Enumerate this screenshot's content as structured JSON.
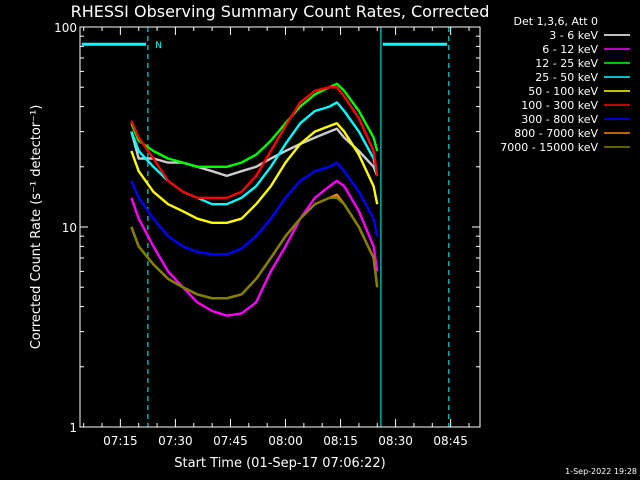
{
  "chart_data": {
    "type": "line",
    "title": "RHESSI Observing Summary Count Rates, Corrected",
    "xlabel": "Start Time (01-Sep-17 07:06:22)",
    "ylabel": "Corrected Count Rate (s⁻¹ detector⁻¹)",
    "yscale": "log",
    "ylim": [
      1,
      100
    ],
    "xlim_minutes": [
      64,
      173
    ],
    "x_tick_labels": [
      "07:15",
      "07:30",
      "07:45",
      "08:00",
      "08:15",
      "08:30",
      "08:45"
    ],
    "x_ticks_minutes": [
      75,
      90,
      105,
      120,
      135,
      150,
      165
    ],
    "y_tick_labels": [
      "1",
      "10",
      "100"
    ],
    "y_ticks": [
      1,
      10,
      100
    ],
    "legend_title": "Det 1,3,6, Att 0",
    "legend_position": "right",
    "grid": false,
    "x_minutes": [
      78,
      80,
      84,
      88,
      92,
      96,
      100,
      104,
      108,
      112,
      116,
      120,
      124,
      128,
      132,
      134,
      136,
      140,
      144,
      145
    ],
    "series": [
      {
        "name": "3 - 6 keV",
        "color": "#000000",
        "values": [
          30,
          22,
          22,
          21,
          21,
          20,
          19,
          18,
          19,
          20,
          22,
          24,
          26,
          28,
          30,
          31,
          28,
          24,
          20,
          18
        ]
      },
      {
        "name": "6 - 12 keV",
        "color": "#ff00ff",
        "values": [
          14,
          11,
          8,
          6,
          5,
          4.2,
          3.8,
          3.6,
          3.7,
          4.2,
          6,
          8,
          11,
          14,
          16,
          17,
          16,
          12,
          8,
          6
        ]
      },
      {
        "name": "12 - 25 keV",
        "color": "#00ff00",
        "values": [
          33,
          27,
          24,
          22,
          21,
          20,
          20,
          20,
          21,
          23,
          27,
          33,
          40,
          46,
          50,
          52,
          48,
          38,
          28,
          24
        ]
      },
      {
        "name": "25 - 50 keV",
        "color": "#00ffff",
        "values": [
          30,
          24,
          20,
          17,
          15,
          14,
          13,
          13,
          14,
          16,
          20,
          26,
          33,
          38,
          40,
          42,
          38,
          30,
          22,
          18
        ]
      },
      {
        "name": "50 - 100 keV",
        "color": "#ffff00",
        "values": [
          24,
          19,
          15,
          13,
          12,
          11,
          10.5,
          10.5,
          11,
          13,
          16,
          21,
          26,
          30,
          32,
          33,
          30,
          23,
          16,
          13
        ]
      },
      {
        "name": "100 - 300 keV",
        "color": "#ff0000",
        "values": [
          34,
          28,
          22,
          17,
          15,
          14,
          14,
          14,
          15,
          18,
          24,
          32,
          42,
          48,
          50,
          50,
          45,
          35,
          24,
          18
        ]
      },
      {
        "name": "300 - 800 keV",
        "color": "#0000ff",
        "values": [
          17,
          14,
          11,
          9,
          8,
          7.5,
          7.3,
          7.3,
          7.8,
          9,
          11,
          14,
          17,
          19,
          20,
          21,
          19,
          15,
          11,
          9
        ]
      },
      {
        "name": "800 - 7000 keV",
        "color": "#ff8000",
        "values": [
          10,
          8,
          6.5,
          5.5,
          5,
          4.6,
          4.4,
          4.4,
          4.6,
          5.5,
          7,
          9,
          11,
          13,
          14,
          14.5,
          13,
          10,
          7,
          5
        ]
      },
      {
        "name": "7000 - 15000 keV",
        "color": "#808000",
        "values": [
          10,
          8,
          6.5,
          5.5,
          5,
          4.6,
          4.4,
          4.4,
          4.6,
          5.5,
          7,
          9,
          11,
          13,
          14,
          14,
          13,
          10,
          7,
          5
        ]
      }
    ],
    "night_label": "N",
    "annotation_color": "#00ffff",
    "timestamp": "1-Sep-2022 19:28"
  }
}
